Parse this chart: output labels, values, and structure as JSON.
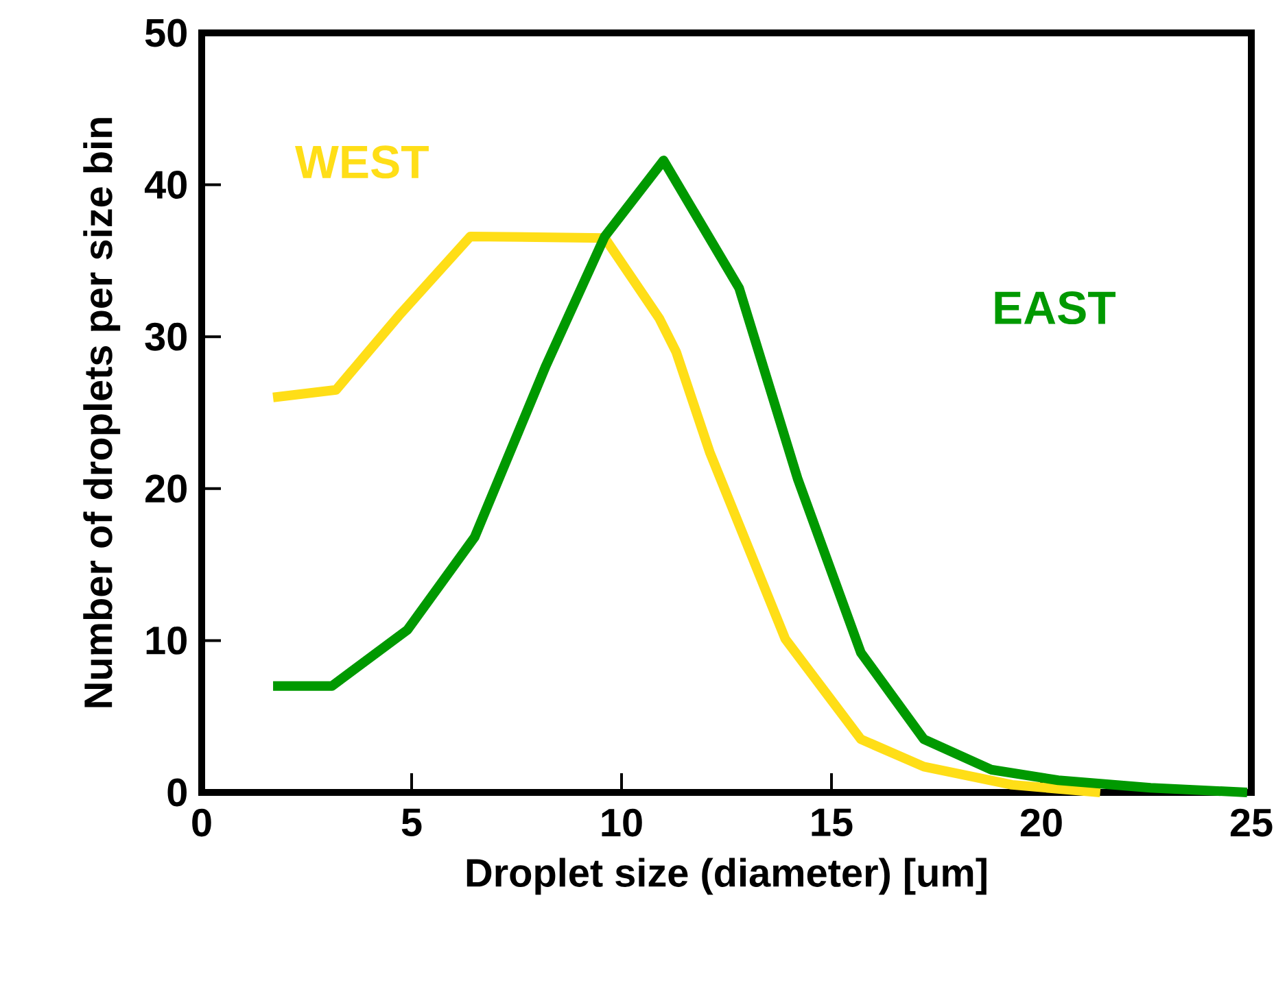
{
  "chart_data": {
    "type": "line",
    "xlabel": "Droplet size (diameter) [um]",
    "ylabel": "Number of droplets per size bin",
    "xlim": [
      0,
      25
    ],
    "xticks": [
      0,
      5,
      10,
      15,
      20,
      25
    ],
    "ylim": [
      0,
      50
    ],
    "yticks": [
      0,
      10,
      20,
      30,
      40,
      50
    ],
    "grid": false,
    "legend": false,
    "marker": "none",
    "line_style": "solid",
    "series": [
      {
        "name": "WEST",
        "color": "#ffde17",
        "x": [
          1.7,
          3.2,
          4.7,
          6.4,
          9.6,
          10.9,
          11.3,
          12.1,
          13.9,
          15.7,
          17.2,
          19.3,
          21.4
        ],
        "values": [
          26,
          26.5,
          31.4,
          36.6,
          36.5,
          31.2,
          29,
          22.4,
          10.1,
          3.5,
          1.7,
          0.5,
          0
        ]
      },
      {
        "name": "EAST",
        "color": "#009900",
        "x": [
          1.7,
          3.1,
          4.9,
          6.5,
          8.2,
          9.6,
          11.0,
          12.8,
          14.2,
          15.7,
          17.2,
          18.8,
          20.4,
          22.6,
          24.9
        ],
        "values": [
          7,
          7,
          10.7,
          16.8,
          28.1,
          36.6,
          41.6,
          33.2,
          20.6,
          9.2,
          3.5,
          1.5,
          0.8,
          0.3,
          0
        ]
      }
    ]
  }
}
